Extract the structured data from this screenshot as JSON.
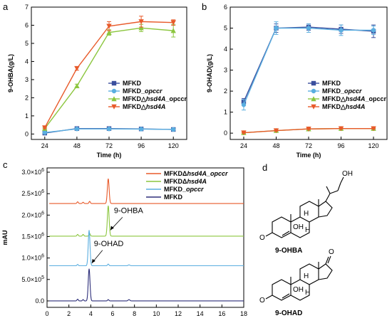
{
  "panels": {
    "a": "a",
    "b": "b",
    "c": "c",
    "d": "d"
  },
  "chart_data": [
    {
      "id": "a",
      "type": "line",
      "xlabel": "Time (h)",
      "ylabel": "9-OHBA(g/L)",
      "x": [
        24,
        48,
        72,
        96,
        120
      ],
      "xlim": [
        14,
        130
      ],
      "ylim": [
        -0.3,
        7
      ],
      "yticks": [
        0,
        1,
        2,
        3,
        4,
        5,
        6,
        7
      ],
      "legend_position": "center-right",
      "series": [
        {
          "name": "MFKD",
          "legend": [
            "MFKD"
          ],
          "color": "#3b4f9e",
          "marker": "square",
          "values": [
            0.05,
            0.3,
            0.3,
            0.28,
            0.25
          ],
          "err": [
            0.03,
            0.03,
            0.03,
            0.03,
            0.03
          ]
        },
        {
          "name": "MFKD_opccr",
          "legend": [
            "MFKD_",
            "opccr"
          ],
          "color": "#5aaee0",
          "marker": "circle",
          "values": [
            0.08,
            0.28,
            0.28,
            0.27,
            0.25
          ],
          "err": [
            0.03,
            0.03,
            0.03,
            0.03,
            0.03
          ]
        },
        {
          "name": "MFKDΔhsd4A_opccr",
          "legend": [
            "MFKD△",
            "hsd4A",
            "_opccr"
          ],
          "color": "#8cc63f",
          "marker": "triangle",
          "values": [
            0.3,
            2.65,
            5.6,
            5.85,
            5.7
          ],
          "err": [
            0.05,
            0.1,
            0.15,
            0.2,
            0.35
          ]
        },
        {
          "name": "MFKDΔhsd4A",
          "legend": [
            "MFKD△",
            "hsd4A",
            ""
          ],
          "color": "#e85a2a",
          "marker": "triangle-down",
          "values": [
            0.35,
            3.62,
            5.95,
            6.2,
            6.15
          ],
          "err": [
            0.05,
            0.1,
            0.25,
            0.3,
            0.15
          ]
        }
      ]
    },
    {
      "id": "b",
      "type": "line",
      "xlabel": "Time (h)",
      "ylabel": "9-OHAD(g/L)",
      "x": [
        24,
        48,
        72,
        96,
        120
      ],
      "xlim": [
        14,
        130
      ],
      "ylim": [
        -0.3,
        6
      ],
      "yticks": [
        0,
        1,
        2,
        3,
        4,
        5,
        6
      ],
      "legend_position": "center-right",
      "series": [
        {
          "name": "MFKD",
          "legend": [
            "MFKD"
          ],
          "color": "#3b4f9e",
          "marker": "square",
          "values": [
            1.5,
            5.0,
            5.05,
            4.95,
            4.85
          ],
          "err": [
            0.15,
            0.2,
            0.15,
            0.2,
            0.3
          ]
        },
        {
          "name": "MFKD_opccr",
          "legend": [
            "MFKD_",
            "opccr"
          ],
          "color": "#5aaee0",
          "marker": "circle",
          "values": [
            1.35,
            5.0,
            5.0,
            4.9,
            4.9
          ],
          "err": [
            0.25,
            0.3,
            0.2,
            0.25,
            0.2
          ]
        },
        {
          "name": "MFKDΔhsd4A_opccr",
          "legend": [
            "MFKD△",
            "hsd4A",
            "_opccr"
          ],
          "color": "#8cc63f",
          "marker": "triangle",
          "values": [
            0.02,
            0.12,
            0.2,
            0.22,
            0.22
          ],
          "err": [
            0.02,
            0.02,
            0.02,
            0.02,
            0.02
          ]
        },
        {
          "name": "MFKDΔhsd4A",
          "legend": [
            "MFKD△",
            "hsd4A",
            ""
          ],
          "color": "#e85a2a",
          "marker": "triangle-down",
          "values": [
            0.02,
            0.12,
            0.2,
            0.22,
            0.22
          ],
          "err": [
            0.02,
            0.02,
            0.02,
            0.02,
            0.02
          ]
        }
      ]
    },
    {
      "id": "c",
      "type": "line",
      "ylabel": "mAU",
      "xlim": [
        0,
        18
      ],
      "xticks": [
        0,
        2,
        4,
        6,
        8,
        10,
        12,
        14,
        16,
        18
      ],
      "ylim": [
        -150000,
        3100000
      ],
      "yticks": [
        {
          "v": 0,
          "label": "0.0"
        },
        {
          "v": 500000,
          "label": "5.0×10",
          "exp": "5"
        },
        {
          "v": 1000000,
          "label": "1.0×10",
          "exp": "6"
        },
        {
          "v": 1500000,
          "label": "1.5×10",
          "exp": "6"
        },
        {
          "v": 2000000,
          "label": "2.0×10",
          "exp": "6"
        },
        {
          "v": 2500000,
          "label": "2.5×10",
          "exp": "6"
        },
        {
          "v": 3000000,
          "label": "3.0×10",
          "exp": "6"
        }
      ],
      "legend_position": "top-right",
      "series": [
        {
          "name": "MFKDΔhsd4A_opccr",
          "legend": [
            "MFKDΔ",
            "hsd4A_opccr",
            ""
          ],
          "color": "#e85a2a",
          "baseline": 2270000,
          "peaks": [
            [
              2.8,
              40000,
              0.06
            ],
            [
              3.3,
              30000,
              0.06
            ],
            [
              3.9,
              50000,
              0.06
            ],
            [
              5.6,
              580000,
              0.08
            ]
          ]
        },
        {
          "name": "MFKDΔhsd4A",
          "legend": [
            "MFKDΔ",
            "hsd4A",
            ""
          ],
          "color": "#8cc63f",
          "baseline": 1510000,
          "peaks": [
            [
              2.8,
              40000,
              0.06
            ],
            [
              3.3,
              40000,
              0.06
            ],
            [
              3.9,
              60000,
              0.06
            ],
            [
              5.6,
              710000,
              0.08
            ]
          ]
        },
        {
          "name": "MFKD_opccr",
          "legend": [
            "MFKD_",
            "opccr",
            ""
          ],
          "color": "#5aaee0",
          "baseline": 820000,
          "peaks": [
            [
              2.8,
              30000,
              0.06
            ],
            [
              3.85,
              830000,
              0.08
            ],
            [
              5.6,
              40000,
              0.06
            ],
            [
              7.5,
              20000,
              0.08
            ]
          ]
        },
        {
          "name": "MFKD",
          "legend": [
            "MFKD",
            "",
            ""
          ],
          "color": "#2e2f7a",
          "baseline": 0,
          "peaks": [
            [
              2.8,
              40000,
              0.06
            ],
            [
              3.3,
              30000,
              0.06
            ],
            [
              3.85,
              750000,
              0.08
            ],
            [
              5.6,
              30000,
              0.06
            ],
            [
              7.5,
              30000,
              0.08
            ]
          ]
        }
      ],
      "annotations": [
        {
          "text": "9-OHBA",
          "at": [
            5.6,
            1800000
          ]
        },
        {
          "text": "9-OHAD",
          "at": [
            3.9,
            1000000
          ]
        }
      ]
    }
  ],
  "structures": {
    "ohba": {
      "caption": "9-OHBA",
      "oh_side": "OH",
      "oh_9": "OH",
      "ketone": "O",
      "h_labels": [
        "H",
        "H"
      ]
    },
    "ohad": {
      "caption": "9-OHAD",
      "oh_9": "OH",
      "ketone_a": "O",
      "ketone_d": "O",
      "h_labels": [
        "H",
        "H"
      ]
    }
  }
}
